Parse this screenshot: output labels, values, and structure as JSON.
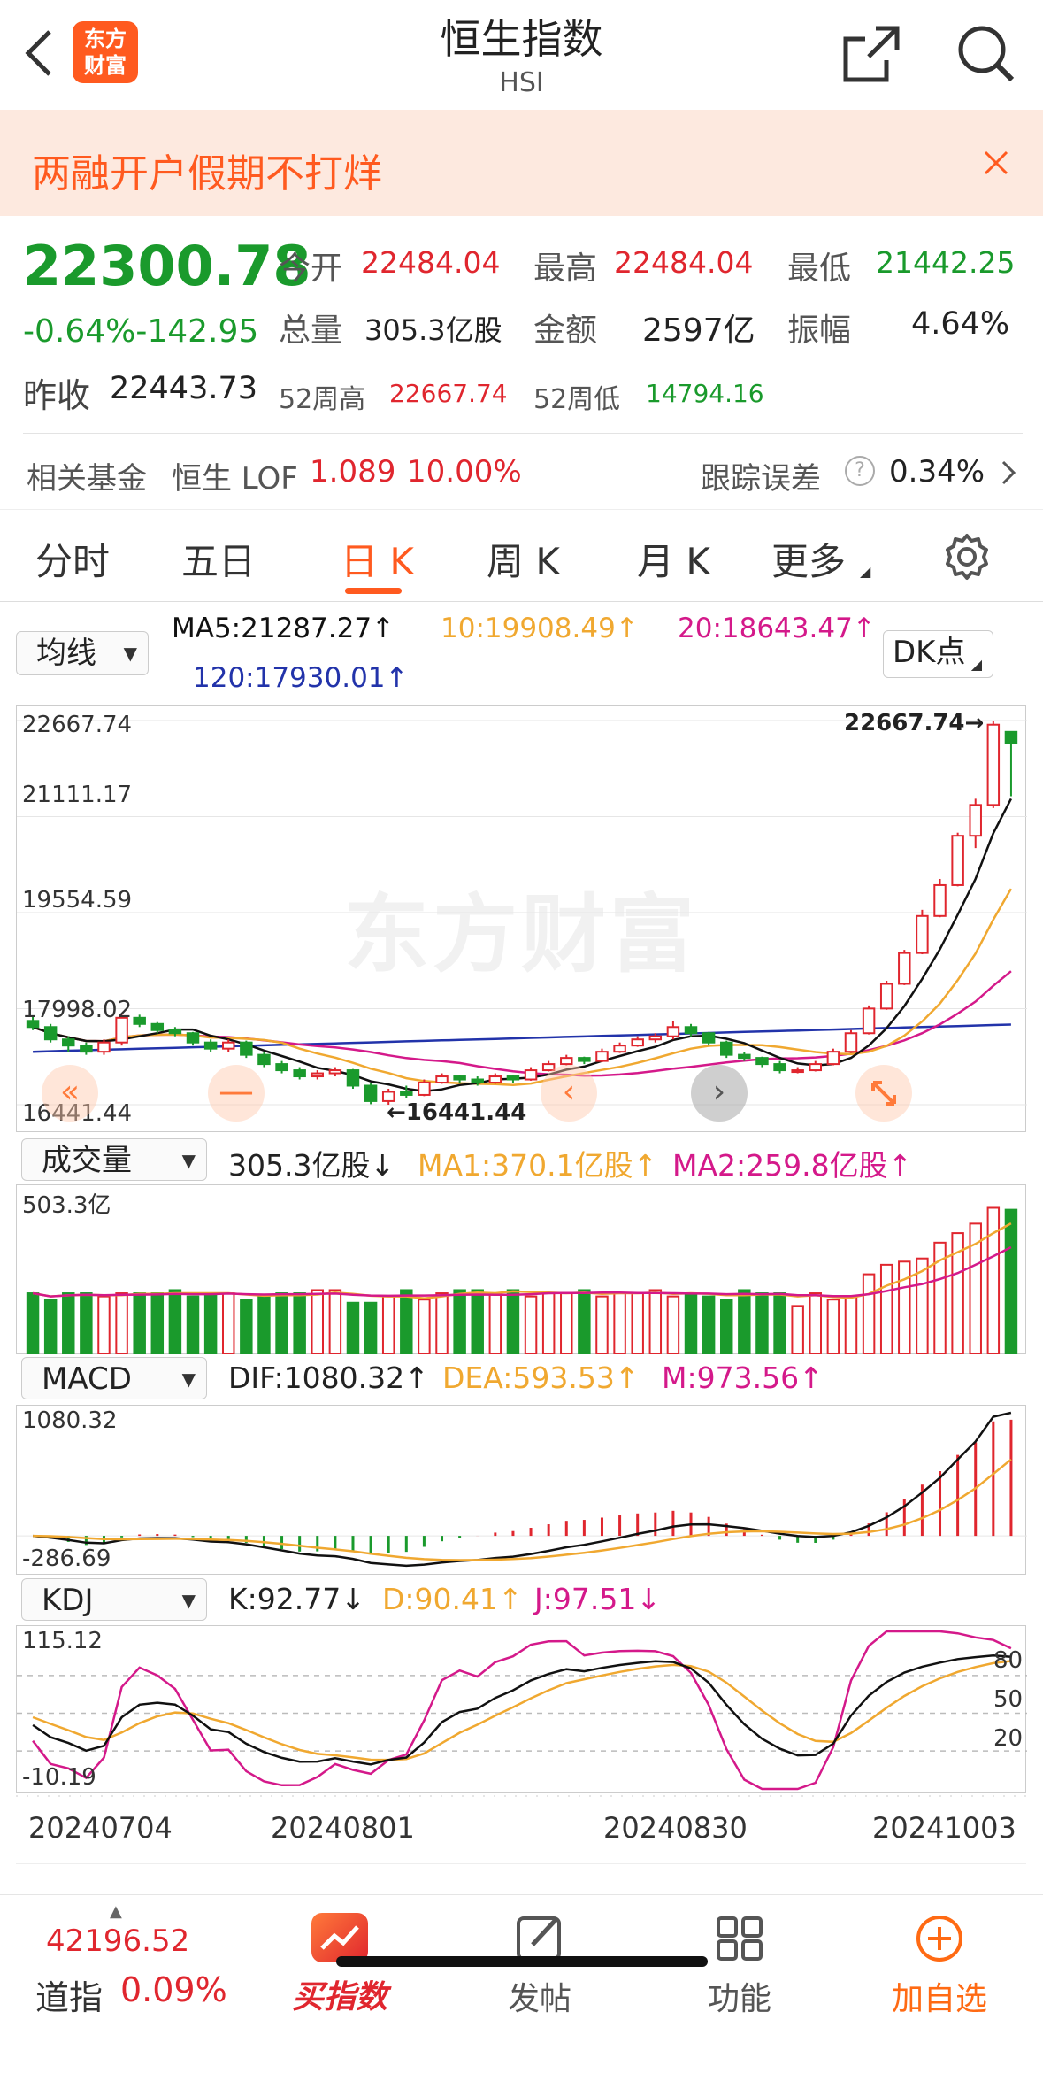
{
  "header": {
    "title": "恒生指数",
    "subtitle": "HSI",
    "logo_text_1": "东方",
    "logo_text_2": "财富"
  },
  "banner": {
    "text": "两融开户假期不打烊"
  },
  "quote": {
    "price": "22300.78",
    "change": "-0.64%-142.95",
    "open_label": "今开",
    "open": "22484.04",
    "high_label": "最高",
    "high": "22484.04",
    "low_label": "最低",
    "low": "21442.25",
    "volume_label": "总量",
    "volume": "305.3亿股",
    "amount_label": "金额",
    "amount": "2597亿",
    "amplitude_label": "振幅",
    "amplitude": "4.64%",
    "prev_close_label": "昨收",
    "prev_close": "22443.73",
    "w52_high_label": "52周高",
    "w52_high": "22667.74",
    "w52_low_label": "52周低",
    "w52_low": "14794.16"
  },
  "fund": {
    "label": "相关基金",
    "name": "恒生 LOF",
    "price": "1.089",
    "pct": "10.00%",
    "error_label": "跟踪误差",
    "error": "0.34%"
  },
  "tabs": [
    "分时",
    "五日",
    "日 K",
    "周 K",
    "月 K",
    "更多"
  ],
  "active_tab": "日 K",
  "ma": {
    "selector": "均线",
    "ma5": "MA5:21287.27↑",
    "ma10": "10:19908.49↑",
    "ma20": "20:18643.47↑",
    "ma120": "120:17930.01↑",
    "dk": "DK点"
  },
  "kline": {
    "yticks": [
      "22667.74",
      "21111.17",
      "19554.59",
      "17998.02",
      "16441.44"
    ],
    "max_label": "22667.74→",
    "min_label": "←16441.44",
    "watermark": "东方财富",
    "candles": [
      [
        17800,
        17880,
        17650,
        17700
      ],
      [
        17700,
        17750,
        17450,
        17500
      ],
      [
        17500,
        17550,
        17300,
        17400
      ],
      [
        17400,
        17450,
        17250,
        17300
      ],
      [
        17300,
        17500,
        17250,
        17450
      ],
      [
        17450,
        17900,
        17400,
        17850
      ],
      [
        17850,
        17900,
        17700,
        17750
      ],
      [
        17750,
        17780,
        17600,
        17650
      ],
      [
        17650,
        17700,
        17550,
        17600
      ],
      [
        17600,
        17620,
        17400,
        17450
      ],
      [
        17450,
        17500,
        17300,
        17350
      ],
      [
        17350,
        17500,
        17300,
        17450
      ],
      [
        17450,
        17480,
        17200,
        17250
      ],
      [
        17250,
        17300,
        17050,
        17100
      ],
      [
        17100,
        17150,
        16950,
        17000
      ],
      [
        17000,
        17050,
        16850,
        16900
      ],
      [
        16900,
        17000,
        16850,
        16950
      ],
      [
        16950,
        17050,
        16900,
        17000
      ],
      [
        17000,
        17020,
        16700,
        16750
      ],
      [
        16750,
        16800,
        16450,
        16500
      ],
      [
        16500,
        16700,
        16441,
        16650
      ],
      [
        16650,
        16750,
        16550,
        16600
      ],
      [
        16600,
        16850,
        16580,
        16800
      ],
      [
        16800,
        16950,
        16780,
        16900
      ],
      [
        16900,
        16920,
        16800,
        16850
      ],
      [
        16850,
        16900,
        16750,
        16800
      ],
      [
        16800,
        16950,
        16780,
        16900
      ],
      [
        16900,
        16920,
        16800,
        16850
      ],
      [
        16850,
        17050,
        16830,
        17000
      ],
      [
        17000,
        17150,
        16980,
        17100
      ],
      [
        17100,
        17250,
        17080,
        17200
      ],
      [
        17200,
        17220,
        17100,
        17150
      ],
      [
        17150,
        17350,
        17130,
        17300
      ],
      [
        17300,
        17450,
        17280,
        17400
      ],
      [
        17400,
        17550,
        17380,
        17500
      ],
      [
        17500,
        17600,
        17450,
        17550
      ],
      [
        17550,
        17800,
        17500,
        17700
      ],
      [
        17700,
        17750,
        17550,
        17600
      ],
      [
        17600,
        17620,
        17400,
        17450
      ],
      [
        17450,
        17480,
        17200,
        17250
      ],
      [
        17250,
        17300,
        17150,
        17200
      ],
      [
        17200,
        17220,
        17050,
        17100
      ],
      [
        17100,
        17150,
        16950,
        17000
      ],
      [
        17000,
        17050,
        16950,
        17000
      ],
      [
        17000,
        17150,
        16980,
        17100
      ],
      [
        17100,
        17350,
        17080,
        17300
      ],
      [
        17300,
        17650,
        17280,
        17600
      ],
      [
        17600,
        18050,
        17580,
        18000
      ],
      [
        18000,
        18450,
        17980,
        18400
      ],
      [
        18400,
        18950,
        18380,
        18900
      ],
      [
        18900,
        19600,
        18880,
        19500
      ],
      [
        19500,
        20100,
        19480,
        20000
      ],
      [
        20000,
        20850,
        19980,
        20800
      ],
      [
        20800,
        21400,
        20600,
        21300
      ],
      [
        21300,
        22667,
        21250,
        22600
      ],
      [
        22484,
        22484,
        21442,
        22300
      ]
    ]
  },
  "volume": {
    "selector": "成交量",
    "value": "305.3亿股↓",
    "ma1": "MA1:370.1亿股↑",
    "ma2": "MA2:259.8亿股↑",
    "ymax": "503.3亿"
  },
  "macd": {
    "selector": "MACD",
    "dif": "DIF:1080.32↑",
    "dea": "DEA:593.53↑",
    "m": "M:973.56↑",
    "ymax": "1080.32",
    "ymin": "-286.69"
  },
  "kdj": {
    "selector": "KDJ",
    "k": "K:92.77↓",
    "d": "D:90.41↑",
    "j": "J:97.51↓",
    "ymax": "115.12",
    "ymin": "-10.19",
    "levels": [
      "80",
      "50",
      "20"
    ]
  },
  "dates": [
    "20240704",
    "20240801",
    "20240830",
    "20241003"
  ],
  "bottom": {
    "index_value": "42196.52",
    "index_name": "道指",
    "index_pct": "0.09%",
    "buy": "买指数",
    "post": "发帖",
    "func": "功能",
    "fav": "加自选"
  },
  "colors": {
    "up": "#e0262e",
    "down": "#1a9a2c",
    "ma5": "#111111",
    "ma10": "#f0a830",
    "ma20": "#d4198a",
    "ma120": "#2233aa",
    "accent": "#ff6a13"
  }
}
